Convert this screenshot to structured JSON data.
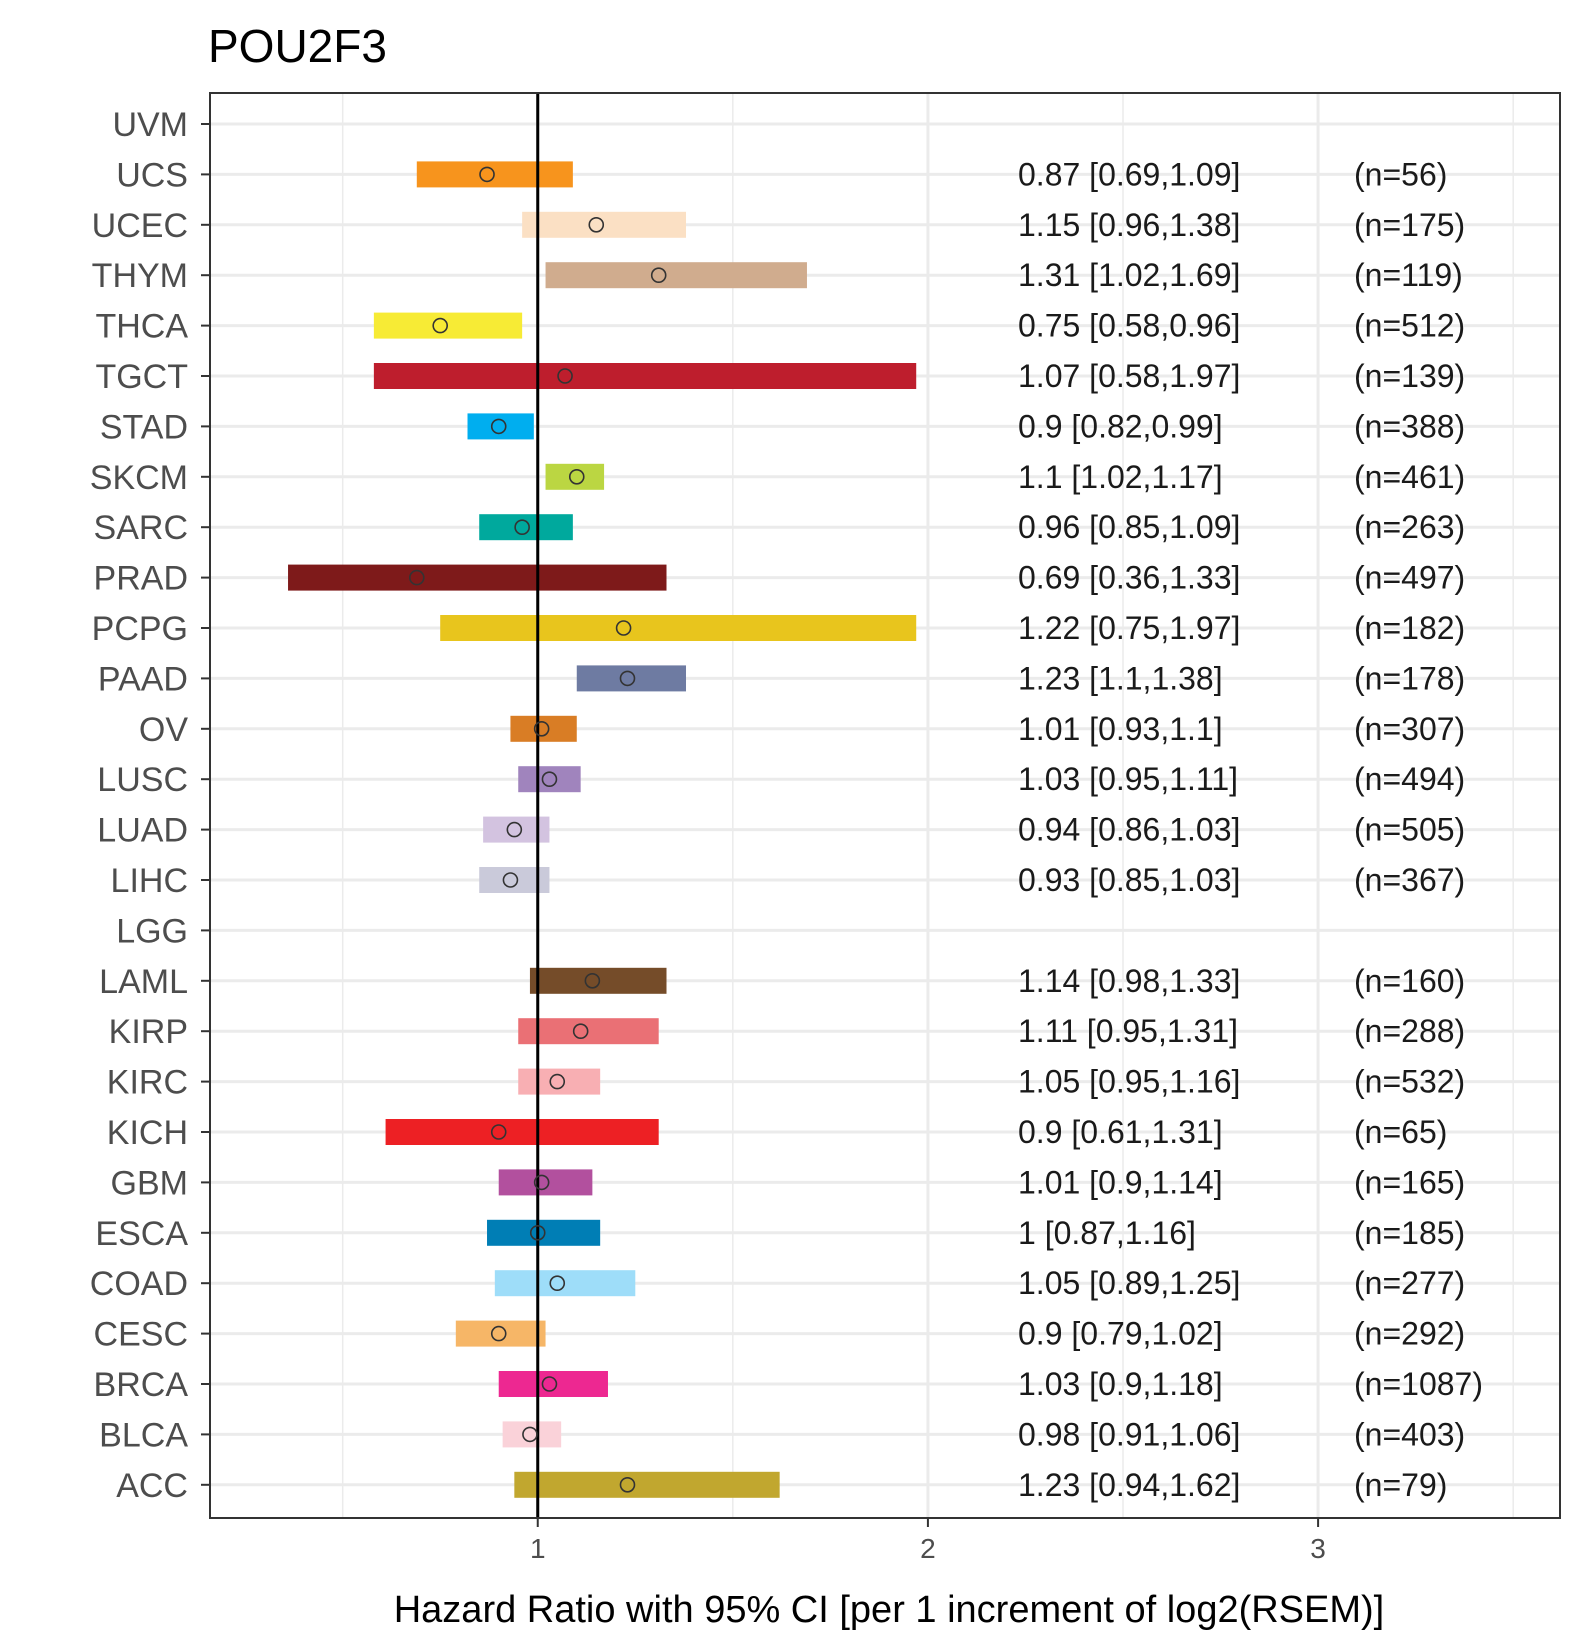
{
  "chart_data": {
    "type": "forest",
    "title": "POU2F3",
    "xlabel": "Hazard Ratio with 95% CI [per 1 increment of log2(RSEM)]",
    "ylabel": "",
    "xlim": [
      0.16,
      3.62
    ],
    "xticks": [
      1,
      2,
      3
    ],
    "xgrid_minor": [
      0.5,
      1.5,
      2.5,
      3.5
    ],
    "reference_line": 1,
    "grid": true,
    "rows": [
      {
        "label": "UVM",
        "hr": null,
        "lo": null,
        "hi": null,
        "text": "",
        "n": "",
        "color": ""
      },
      {
        "label": "UCS",
        "hr": 0.87,
        "lo": 0.69,
        "hi": 1.09,
        "text": "0.87 [0.69,1.09]",
        "n": "(n=56)",
        "color": "#F7941D"
      },
      {
        "label": "UCEC",
        "hr": 1.15,
        "lo": 0.96,
        "hi": 1.38,
        "text": "1.15 [0.96,1.38]",
        "n": "(n=175)",
        "color": "#FBE0C4"
      },
      {
        "label": "THYM",
        "hr": 1.31,
        "lo": 1.02,
        "hi": 1.69,
        "text": "1.31 [1.02,1.69]",
        "n": "(n=119)",
        "color": "#D0AC8E"
      },
      {
        "label": "THCA",
        "hr": 0.75,
        "lo": 0.58,
        "hi": 0.96,
        "text": "0.75 [0.58,0.96]",
        "n": "(n=512)",
        "color": "#F7EB35"
      },
      {
        "label": "TGCT",
        "hr": 1.07,
        "lo": 0.58,
        "hi": 1.97,
        "text": "1.07 [0.58,1.97]",
        "n": "(n=139)",
        "color": "#BE1E2D"
      },
      {
        "label": "STAD",
        "hr": 0.9,
        "lo": 0.82,
        "hi": 0.99,
        "text": "0.9 [0.82,0.99]",
        "n": "(n=388)",
        "color": "#00AEEF"
      },
      {
        "label": "SKCM",
        "hr": 1.1,
        "lo": 1.02,
        "hi": 1.17,
        "text": "1.1 [1.02,1.17]",
        "n": "(n=461)",
        "color": "#BBD642"
      },
      {
        "label": "SARC",
        "hr": 0.96,
        "lo": 0.85,
        "hi": 1.09,
        "text": "0.96 [0.85,1.09]",
        "n": "(n=263)",
        "color": "#00A99D"
      },
      {
        "label": "PRAD",
        "hr": 0.69,
        "lo": 0.36,
        "hi": 1.33,
        "text": "0.69 [0.36,1.33]",
        "n": "(n=497)",
        "color": "#7E1A1A"
      },
      {
        "label": "PCPG",
        "hr": 1.22,
        "lo": 0.75,
        "hi": 1.97,
        "text": "1.22 [0.75,1.97]",
        "n": "(n=182)",
        "color": "#E8C51D"
      },
      {
        "label": "PAAD",
        "hr": 1.23,
        "lo": 1.1,
        "hi": 1.38,
        "text": "1.23 [1.1,1.38]",
        "n": "(n=178)",
        "color": "#6E7BA2"
      },
      {
        "label": "OV",
        "hr": 1.01,
        "lo": 0.93,
        "hi": 1.1,
        "text": "1.01 [0.93,1.1]",
        "n": "(n=307)",
        "color": "#D97D25"
      },
      {
        "label": "LUSC",
        "hr": 1.03,
        "lo": 0.95,
        "hi": 1.11,
        "text": "1.03 [0.95,1.11]",
        "n": "(n=494)",
        "color": "#A084BD"
      },
      {
        "label": "LUAD",
        "hr": 0.94,
        "lo": 0.86,
        "hi": 1.03,
        "text": "0.94 [0.86,1.03]",
        "n": "(n=505)",
        "color": "#D3C3E0"
      },
      {
        "label": "LIHC",
        "hr": 0.93,
        "lo": 0.85,
        "hi": 1.03,
        "text": "0.93 [0.85,1.03]",
        "n": "(n=367)",
        "color": "#CACADA"
      },
      {
        "label": "LGG",
        "hr": null,
        "lo": null,
        "hi": null,
        "text": "",
        "n": "",
        "color": ""
      },
      {
        "label": "LAML",
        "hr": 1.14,
        "lo": 0.98,
        "hi": 1.33,
        "text": "1.14 [0.98,1.33]",
        "n": "(n=160)",
        "color": "#754C29"
      },
      {
        "label": "KIRP",
        "hr": 1.11,
        "lo": 0.95,
        "hi": 1.31,
        "text": "1.11 [0.95,1.31]",
        "n": "(n=288)",
        "color": "#EA7075"
      },
      {
        "label": "KIRC",
        "hr": 1.05,
        "lo": 0.95,
        "hi": 1.16,
        "text": "1.05 [0.95,1.16]",
        "n": "(n=532)",
        "color": "#F8AFB3"
      },
      {
        "label": "KICH",
        "hr": 0.9,
        "lo": 0.61,
        "hi": 1.31,
        "text": "0.9 [0.61,1.31]",
        "n": "(n=65)",
        "color": "#ED2024"
      },
      {
        "label": "GBM",
        "hr": 1.01,
        "lo": 0.9,
        "hi": 1.14,
        "text": "1.01 [0.9,1.14]",
        "n": "(n=165)",
        "color": "#B2509E"
      },
      {
        "label": "ESCA",
        "hr": 1,
        "lo": 0.87,
        "hi": 1.16,
        "text": "1 [0.87,1.16]",
        "n": "(n=185)",
        "color": "#007EB5"
      },
      {
        "label": "COAD",
        "hr": 1.05,
        "lo": 0.89,
        "hi": 1.25,
        "text": "1.05 [0.89,1.25]",
        "n": "(n=277)",
        "color": "#9EDDF9"
      },
      {
        "label": "CESC",
        "hr": 0.9,
        "lo": 0.79,
        "hi": 1.02,
        "text": "0.9 [0.79,1.02]",
        "n": "(n=292)",
        "color": "#F6B667"
      },
      {
        "label": "BRCA",
        "hr": 1.03,
        "lo": 0.9,
        "hi": 1.18,
        "text": "1.03 [0.9,1.18]",
        "n": "(n=1087)",
        "color": "#ED2891"
      },
      {
        "label": "BLCA",
        "hr": 0.98,
        "lo": 0.91,
        "hi": 1.06,
        "text": "0.98 [0.91,1.06]",
        "n": "(n=403)",
        "color": "#FAD2D9"
      },
      {
        "label": "ACC",
        "hr": 1.23,
        "lo": 0.94,
        "hi": 1.62,
        "text": "1.23 [0.94,1.62]",
        "n": "(n=79)",
        "color": "#C1A72F"
      }
    ]
  }
}
